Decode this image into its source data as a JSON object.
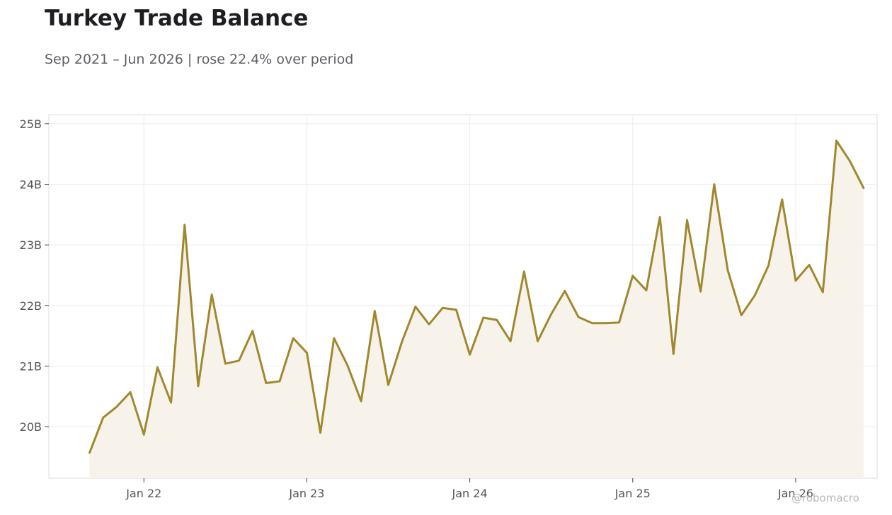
{
  "header": {
    "title": "Turkey Trade Balance",
    "subtitle": "Sep 2021 – Jun 2026 | rose 22.4% over period"
  },
  "watermark": "@robomacro",
  "colors": {
    "line": "#a0882e",
    "fill": "#f7f3ea",
    "grid": "#ececec",
    "frame": "#dddddd"
  },
  "chart_data": {
    "type": "area",
    "title": "Turkey Trade Balance",
    "subtitle": "Sep 2021 – Jun 2026 | rose 22.4% over period",
    "xlabel": "",
    "ylabel": "",
    "grid": true,
    "x_start": "2021-09",
    "x_end": "2026-06",
    "xlim": [
      "2021-06",
      "2026-07"
    ],
    "ylim": [
      19.15,
      25.15
    ],
    "x_ticks": [
      {
        "date": "2022-01",
        "label": "Jan 22"
      },
      {
        "date": "2023-01",
        "label": "Jan 23"
      },
      {
        "date": "2024-01",
        "label": "Jan 24"
      },
      {
        "date": "2025-01",
        "label": "Jan 25"
      },
      {
        "date": "2026-01",
        "label": "Jan 26"
      }
    ],
    "y_ticks": [
      {
        "value": 20,
        "label": "20B"
      },
      {
        "value": 21,
        "label": "21B"
      },
      {
        "value": 22,
        "label": "22B"
      },
      {
        "value": 23,
        "label": "23B"
      },
      {
        "value": 24,
        "label": "24B"
      },
      {
        "value": 25,
        "label": "25B"
      }
    ],
    "series": [
      {
        "values": [
          [
            "2021-09",
            19.57
          ],
          [
            "2021-10",
            20.15
          ],
          [
            "2021-11",
            20.33
          ],
          [
            "2021-12",
            20.57
          ],
          [
            "2022-01",
            19.87
          ],
          [
            "2022-02",
            20.98
          ],
          [
            "2022-03",
            20.4
          ],
          [
            "2022-04",
            23.33
          ],
          [
            "2022-05",
            20.67
          ],
          [
            "2022-06",
            22.18
          ],
          [
            "2022-07",
            21.04
          ],
          [
            "2022-08",
            21.09
          ],
          [
            "2022-09",
            21.58
          ],
          [
            "2022-10",
            20.72
          ],
          [
            "2022-11",
            20.75
          ],
          [
            "2022-12",
            21.46
          ],
          [
            "2023-01",
            21.22
          ],
          [
            "2023-02",
            19.9
          ],
          [
            "2023-03",
            21.46
          ],
          [
            "2023-04",
            21.01
          ],
          [
            "2023-05",
            20.42
          ],
          [
            "2023-06",
            21.91
          ],
          [
            "2023-07",
            20.69
          ],
          [
            "2023-08",
            21.4
          ],
          [
            "2023-09",
            21.98
          ],
          [
            "2023-10",
            21.69
          ],
          [
            "2023-11",
            21.96
          ],
          [
            "2023-12",
            21.93
          ],
          [
            "2024-01",
            21.19
          ],
          [
            "2024-02",
            21.8
          ],
          [
            "2024-03",
            21.76
          ],
          [
            "2024-04",
            21.41
          ],
          [
            "2024-05",
            22.56
          ],
          [
            "2024-06",
            21.41
          ],
          [
            "2024-07",
            21.86
          ],
          [
            "2024-08",
            22.24
          ],
          [
            "2024-09",
            21.81
          ],
          [
            "2024-10",
            21.71
          ],
          [
            "2024-11",
            21.71
          ],
          [
            "2024-12",
            21.72
          ],
          [
            "2025-01",
            22.49
          ],
          [
            "2025-02",
            22.25
          ],
          [
            "2025-03",
            23.46
          ],
          [
            "2025-04",
            21.2
          ],
          [
            "2025-05",
            23.41
          ],
          [
            "2025-06",
            22.23
          ],
          [
            "2025-07",
            24.0
          ],
          [
            "2025-08",
            22.58
          ],
          [
            "2025-09",
            21.84
          ],
          [
            "2025-10",
            22.17
          ],
          [
            "2025-11",
            22.66
          ],
          [
            "2025-12",
            23.75
          ],
          [
            "2026-01",
            22.41
          ],
          [
            "2026-02",
            22.67
          ],
          [
            "2026-03",
            22.22
          ],
          [
            "2026-04",
            24.72
          ],
          [
            "2026-05",
            24.38
          ],
          [
            "2026-06",
            23.94
          ]
        ]
      }
    ]
  }
}
